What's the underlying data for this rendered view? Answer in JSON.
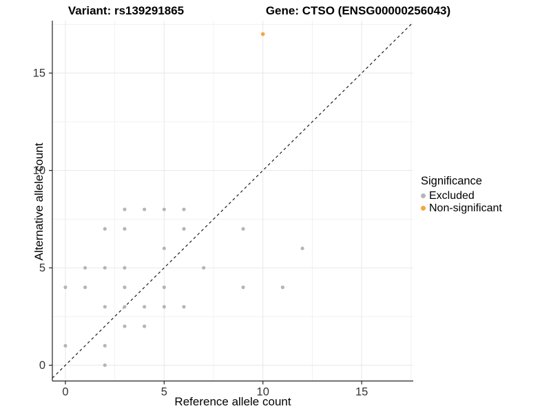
{
  "titles": {
    "variant": "Variant: rs139291865",
    "gene": "Gene: CTSO (ENSG00000256043)"
  },
  "axes": {
    "x_label": "Reference allele count",
    "y_label": "Alternative allele count"
  },
  "legend": {
    "title": "Significance",
    "items": [
      {
        "label": "Excluded",
        "color": "#b5b5b5"
      },
      {
        "label": "Non-significant",
        "color": "#FAA43A"
      }
    ]
  },
  "chart_data": {
    "type": "scatter",
    "title": "Variant: rs139291865   Gene: CTSO (ENSG00000256043)",
    "xlabel": "Reference allele count",
    "ylabel": "Alternative allele count",
    "xlim": [
      -0.66,
      17.61
    ],
    "ylim": [
      -0.81,
      17.69
    ],
    "x_ticks": [
      0,
      5,
      10,
      15
    ],
    "y_ticks": [
      0,
      5,
      10,
      15
    ],
    "minor_gridlines_x": [
      2.5,
      7.5,
      12.5,
      17.5
    ],
    "minor_gridlines_y": [
      2.5,
      7.5,
      12.5,
      17.5
    ],
    "grid": true,
    "legend_position": "right",
    "identity_line": {
      "equation": "y = x",
      "style": "dashed",
      "color": "#1a1a1a"
    },
    "colors": {
      "major_grid": "#e7e7e7",
      "minor_grid": "#f1f1f1",
      "axis_line": "#222222",
      "tick_label": "#333333"
    },
    "series": [
      {
        "name": "Excluded",
        "color": "#b5b5b5",
        "point_radius": 2.6,
        "points": [
          [
            2,
            0
          ],
          [
            0,
            1
          ],
          [
            2,
            1
          ],
          [
            3,
            2
          ],
          [
            4,
            2
          ],
          [
            2,
            3
          ],
          [
            3,
            3
          ],
          [
            4,
            3
          ],
          [
            5,
            3
          ],
          [
            6,
            3
          ],
          [
            0,
            4
          ],
          [
            1,
            4
          ],
          [
            3,
            4
          ],
          [
            5,
            4
          ],
          [
            9,
            4
          ],
          [
            11,
            4
          ],
          [
            1,
            5
          ],
          [
            2,
            5
          ],
          [
            3,
            5
          ],
          [
            7,
            5
          ],
          [
            5,
            6
          ],
          [
            12,
            6
          ],
          [
            2,
            7
          ],
          [
            3,
            7
          ],
          [
            6,
            7
          ],
          [
            9,
            7
          ],
          [
            3,
            8
          ],
          [
            4,
            8
          ],
          [
            5,
            8
          ],
          [
            6,
            8
          ]
        ]
      },
      {
        "name": "Non-significant",
        "color": "#FAA43A",
        "point_radius": 2.8,
        "points": [
          [
            10,
            17
          ]
        ]
      }
    ]
  }
}
